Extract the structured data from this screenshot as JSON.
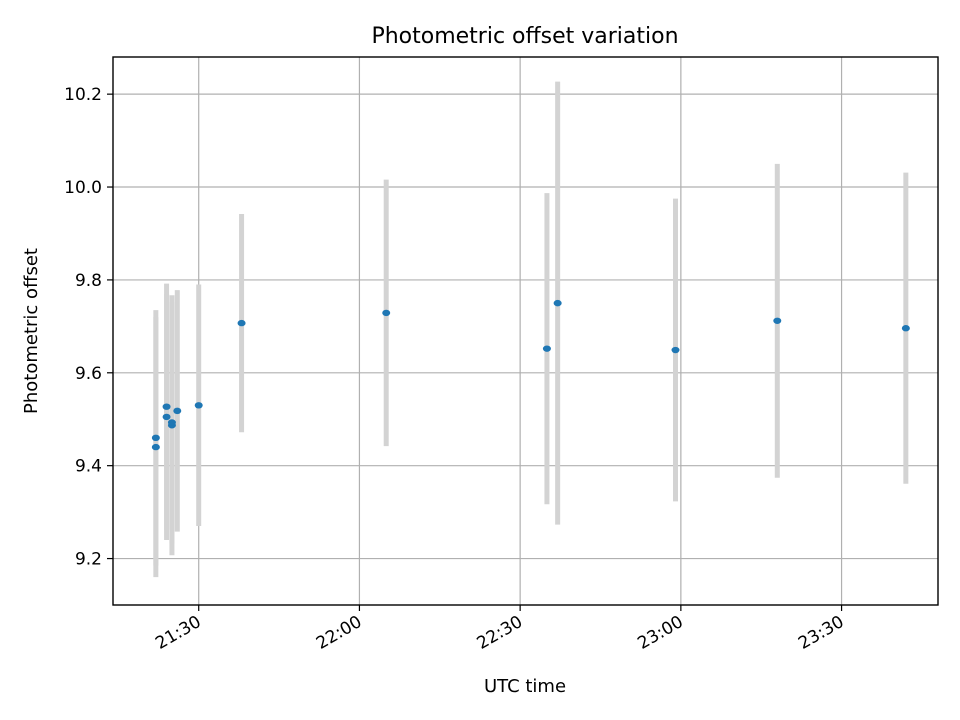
{
  "chart_data": {
    "type": "scatter",
    "title": "Photometric offset variation",
    "xlabel": "UTC time",
    "ylabel": "Photometric offset",
    "x_axis": {
      "type": "time",
      "range": [
        "21:14",
        "23:48"
      ],
      "ticks": [
        "21:30",
        "22:00",
        "22:30",
        "23:00",
        "23:30"
      ]
    },
    "y_axis": {
      "range": [
        9.1,
        10.28
      ],
      "ticks": [
        9.2,
        9.4,
        9.6,
        9.8,
        10.0,
        10.2
      ],
      "tick_labels": [
        "9.2",
        "9.4",
        "9.6",
        "9.8",
        "10.0",
        "10.2"
      ]
    },
    "grid": true,
    "colors": {
      "point": "#1f77b4",
      "errorbar": "#d3d3d3"
    },
    "series": [
      {
        "points": [
          {
            "time": "21:22",
            "y": 9.44,
            "yerr": 0.28
          },
          {
            "time": "21:22",
            "y": 9.46,
            "yerr": 0.275
          },
          {
            "time": "21:24",
            "y": 9.505,
            "yerr": 0.265
          },
          {
            "time": "21:24",
            "y": 9.527,
            "yerr": 0.265
          },
          {
            "time": "21:25",
            "y": 9.487,
            "yerr": 0.28
          },
          {
            "time": "21:25",
            "y": 9.493,
            "yerr": 0.26
          },
          {
            "time": "21:26",
            "y": 9.518,
            "yerr": 0.26
          },
          {
            "time": "21:30",
            "y": 9.53,
            "yerr": 0.26
          },
          {
            "time": "21:38",
            "y": 9.707,
            "yerr": 0.235
          },
          {
            "time": "22:05",
            "y": 9.729,
            "yerr": 0.287
          },
          {
            "time": "22:35",
            "y": 9.652,
            "yerr": 0.335
          },
          {
            "time": "22:37",
            "y": 9.75,
            "yerr": 0.477
          },
          {
            "time": "22:59",
            "y": 9.649,
            "yerr": 0.326
          },
          {
            "time": "23:18",
            "y": 9.712,
            "yerr": 0.338
          },
          {
            "time": "23:42",
            "y": 9.696,
            "yerr": 0.335
          }
        ]
      }
    ]
  }
}
